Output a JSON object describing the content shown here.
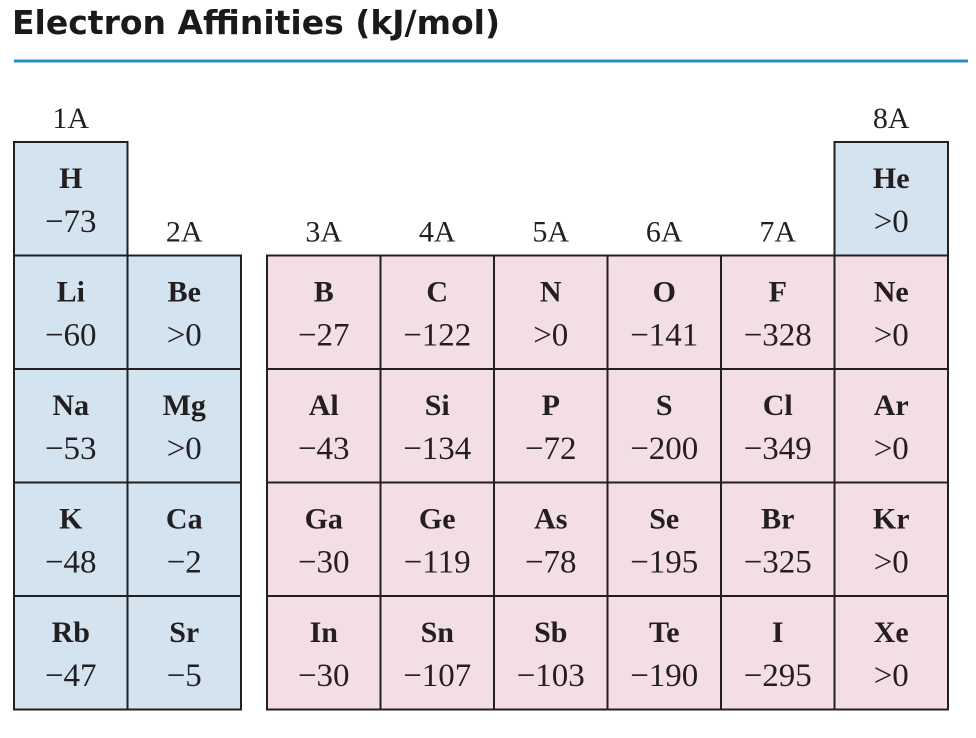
{
  "title": "Electron Affinities (kJ/mol)",
  "groups": [
    {
      "label": "1A",
      "elements": [
        {
          "symbol": "H",
          "value": "−73"
        },
        {
          "symbol": "Li",
          "value": "−60"
        },
        {
          "symbol": "Na",
          "value": "−53"
        },
        {
          "symbol": "K",
          "value": "−48"
        },
        {
          "symbol": "Rb",
          "value": "−47"
        }
      ]
    },
    {
      "label": "2A",
      "elements": [
        {
          "symbol": "Be",
          "value": ">0"
        },
        {
          "symbol": "Mg",
          "value": ">0"
        },
        {
          "symbol": "Ca",
          "value": "−2"
        },
        {
          "symbol": "Sr",
          "value": "−5"
        }
      ]
    },
    {
      "label": "3A",
      "elements": [
        {
          "symbol": "B",
          "value": "−27"
        },
        {
          "symbol": "Al",
          "value": "−43"
        },
        {
          "symbol": "Ga",
          "value": "−30"
        },
        {
          "symbol": "In",
          "value": "−30"
        }
      ]
    },
    {
      "label": "4A",
      "elements": [
        {
          "symbol": "C",
          "value": "−122"
        },
        {
          "symbol": "Si",
          "value": "−134"
        },
        {
          "symbol": "Ge",
          "value": "−119"
        },
        {
          "symbol": "Sn",
          "value": "−107"
        }
      ]
    },
    {
      "label": "5A",
      "elements": [
        {
          "symbol": "N",
          "value": ">0"
        },
        {
          "symbol": "P",
          "value": "−72"
        },
        {
          "symbol": "As",
          "value": "−78"
        },
        {
          "symbol": "Sb",
          "value": "−103"
        }
      ]
    },
    {
      "label": "6A",
      "elements": [
        {
          "symbol": "O",
          "value": "−141"
        },
        {
          "symbol": "S",
          "value": "−200"
        },
        {
          "symbol": "Se",
          "value": "−195"
        },
        {
          "symbol": "Te",
          "value": "−190"
        }
      ]
    },
    {
      "label": "7A",
      "elements": [
        {
          "symbol": "F",
          "value": "−328"
        },
        {
          "symbol": "Cl",
          "value": "−349"
        },
        {
          "symbol": "Br",
          "value": "−325"
        },
        {
          "symbol": "I",
          "value": "−295"
        }
      ]
    },
    {
      "label": "8A",
      "elements": [
        {
          "symbol": "He",
          "value": ">0"
        },
        {
          "symbol": "Ne",
          "value": ">0"
        },
        {
          "symbol": "Ar",
          "value": ">0"
        },
        {
          "symbol": "Kr",
          "value": ">0"
        },
        {
          "symbol": "Xe",
          "value": ">0"
        }
      ]
    }
  ]
}
